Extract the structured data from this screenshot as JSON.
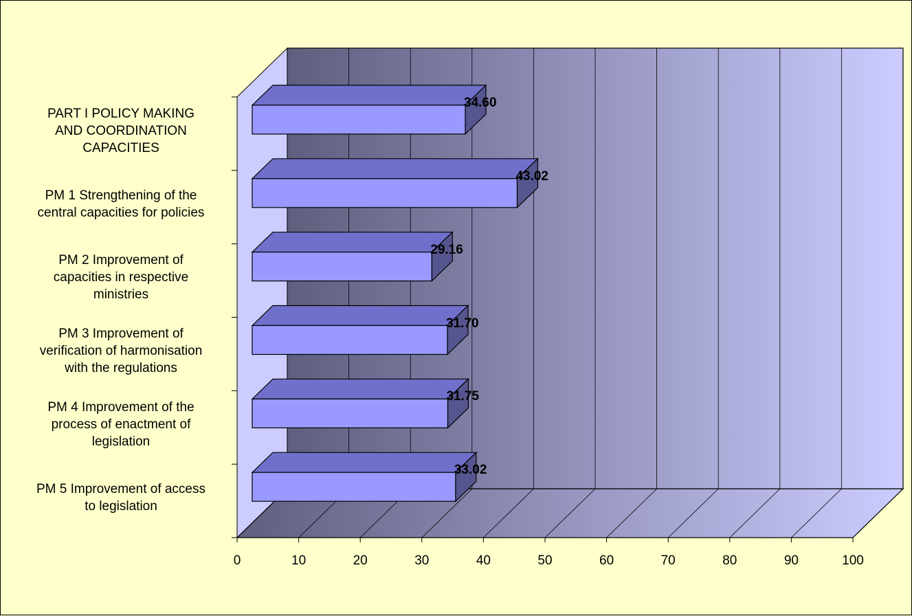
{
  "chart_data": {
    "type": "bar",
    "orientation": "horizontal",
    "categories": [
      "PART I POLICY MAKING AND COORDINATION CAPACITIES",
      "PM 1 Strengthening of the central capacities for policies",
      "PM 2  Improvement of capacities in respective ministries",
      "PM 3  Improvement of verification of harmonisation with the regulations",
      "PM 4  Improvement of the process of enactment of legislation",
      "PM 5  Improvement of access to legislation"
    ],
    "category_lines": [
      [
        "PART I POLICY MAKING",
        "AND COORDINATION",
        "CAPACITIES"
      ],
      [
        "PM 1 Strengthening of the",
        "central capacities for policies"
      ],
      [
        "PM 2  Improvement of",
        "capacities in respective",
        "ministries"
      ],
      [
        "PM 3  Improvement of",
        "verification of harmonisation",
        "with the regulations"
      ],
      [
        "PM 4  Improvement of the",
        "process of enactment of",
        "legislation"
      ],
      [
        "PM 5  Improvement of access",
        "to legislation"
      ]
    ],
    "values": [
      34.6,
      43.02,
      29.16,
      31.7,
      31.75,
      33.02
    ],
    "value_labels": [
      "34.60",
      "43.02",
      "29.16",
      "31.70",
      "31.75",
      "33.02"
    ],
    "xlim": [
      0,
      100
    ],
    "x_ticks": [
      0,
      10,
      20,
      30,
      40,
      50,
      60,
      70,
      80,
      90,
      100
    ],
    "grid": true,
    "three_d": true,
    "colors": {
      "background": "#FFFFCC",
      "bar_front": "#9999FF",
      "bar_top": "#7070CC",
      "bar_side": "#55558F",
      "wall_dark": "#5E5E7E",
      "wall_light": "#CCCCFF",
      "left_wall": "#CCCCFF",
      "floor_dark": "#5E5E7E",
      "floor_light": "#CCCCFF"
    }
  }
}
